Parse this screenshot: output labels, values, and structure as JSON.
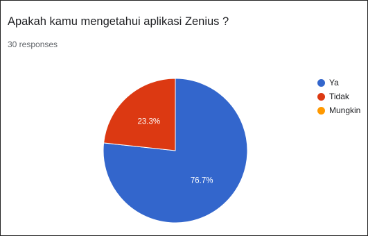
{
  "question": {
    "title": "Apakah kamu mengetahui aplikasi Zenius ?",
    "responses": "30 responses"
  },
  "chart_data": {
    "type": "pie",
    "title": "Apakah kamu mengetahui aplikasi Zenius ?",
    "labels": [
      "Ya",
      "Tidak",
      "Mungkin"
    ],
    "values": [
      76.7,
      23.3,
      0
    ],
    "value_labels": [
      "76.7%",
      "23.3%",
      ""
    ],
    "colors": [
      "#3366cc",
      "#dc3912",
      "#ff9900"
    ],
    "legend_position": "right"
  }
}
